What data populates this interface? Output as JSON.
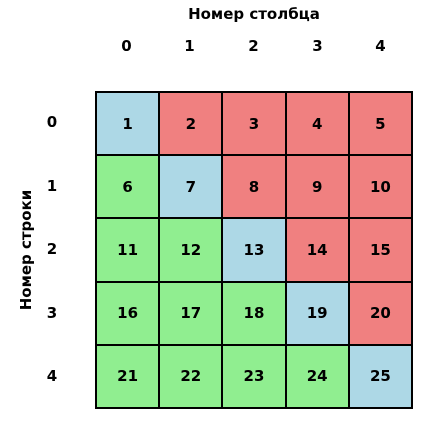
{
  "column_axis_title": "Номер столбца",
  "row_axis_title": "Номер строки",
  "column_labels": [
    "0",
    "1",
    "2",
    "3",
    "4"
  ],
  "row_labels": [
    "0",
    "1",
    "2",
    "3",
    "4"
  ],
  "colors": {
    "upper": "#f08080",
    "diagonal": "#add8e6",
    "lower": "#90ee90"
  },
  "cells": [
    [
      "1",
      "2",
      "3",
      "4",
      "5"
    ],
    [
      "6",
      "7",
      "8",
      "9",
      "10"
    ],
    [
      "11",
      "12",
      "13",
      "14",
      "15"
    ],
    [
      "16",
      "17",
      "18",
      "19",
      "20"
    ],
    [
      "21",
      "22",
      "23",
      "24",
      "25"
    ]
  ]
}
